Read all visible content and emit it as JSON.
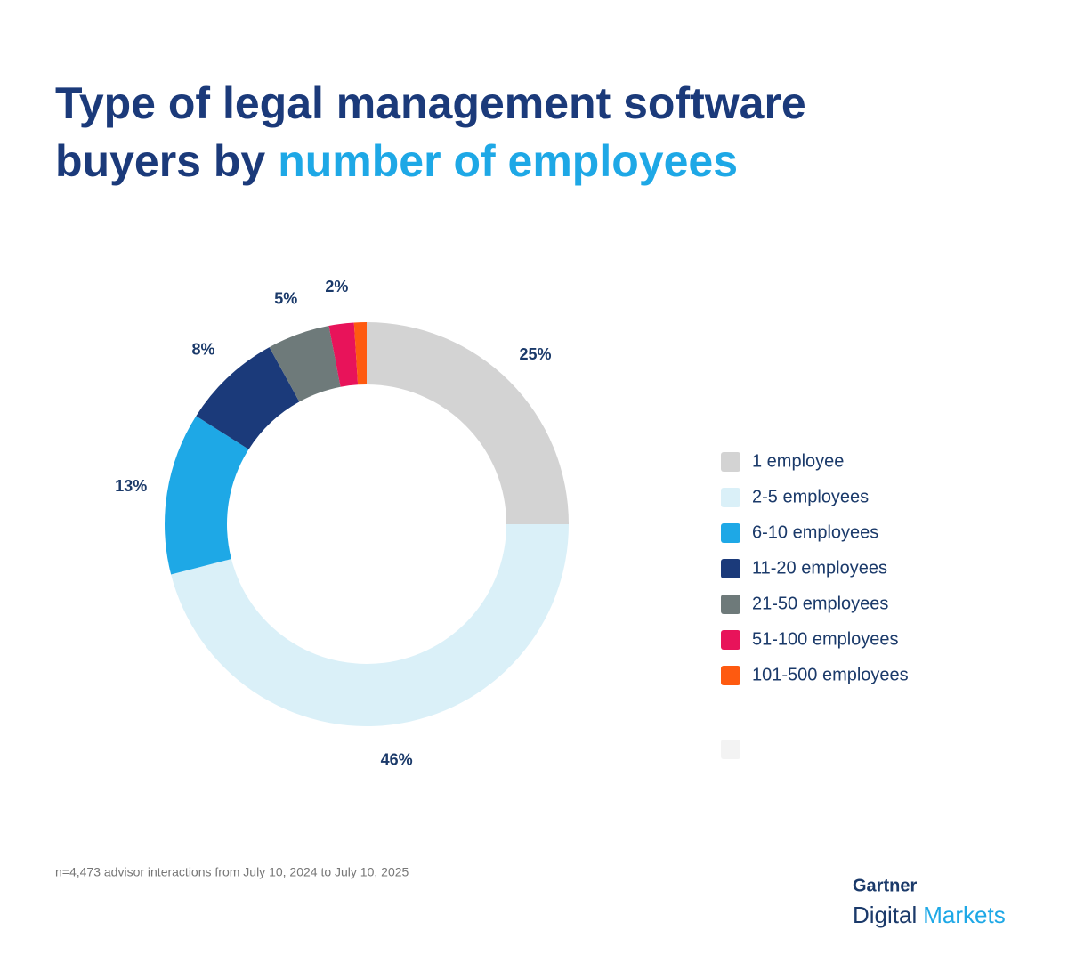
{
  "chart_data": {
    "type": "donut",
    "title": "Type of legal management software",
    "title_line2": "buyers by",
    "title_highlight": "number of employees",
    "categories": [
      "1 employee",
      "2-5 employees",
      "6-10 employees",
      "11-20 employees",
      "21-50 employees",
      "51-100 employees",
      "101-500 employees"
    ],
    "values": [
      25,
      46,
      13,
      8,
      5,
      2,
      1
    ],
    "value_labels": [
      "25%",
      "46%",
      "13%",
      "8%",
      "5%",
      "2%",
      null
    ],
    "colors": [
      "#d3d3d3",
      "#daf0f8",
      "#1ea8e6",
      "#1b3a7a",
      "#6e7a7a",
      "#e8135a",
      "#fe5a10"
    ],
    "legend": "right"
  },
  "footnote": "n=4,473 advisor interactions from July 10, 2024 to July 10, 2025",
  "logo": {
    "brand": "Gartner",
    "word1": "Digital",
    "word2": "Markets"
  }
}
